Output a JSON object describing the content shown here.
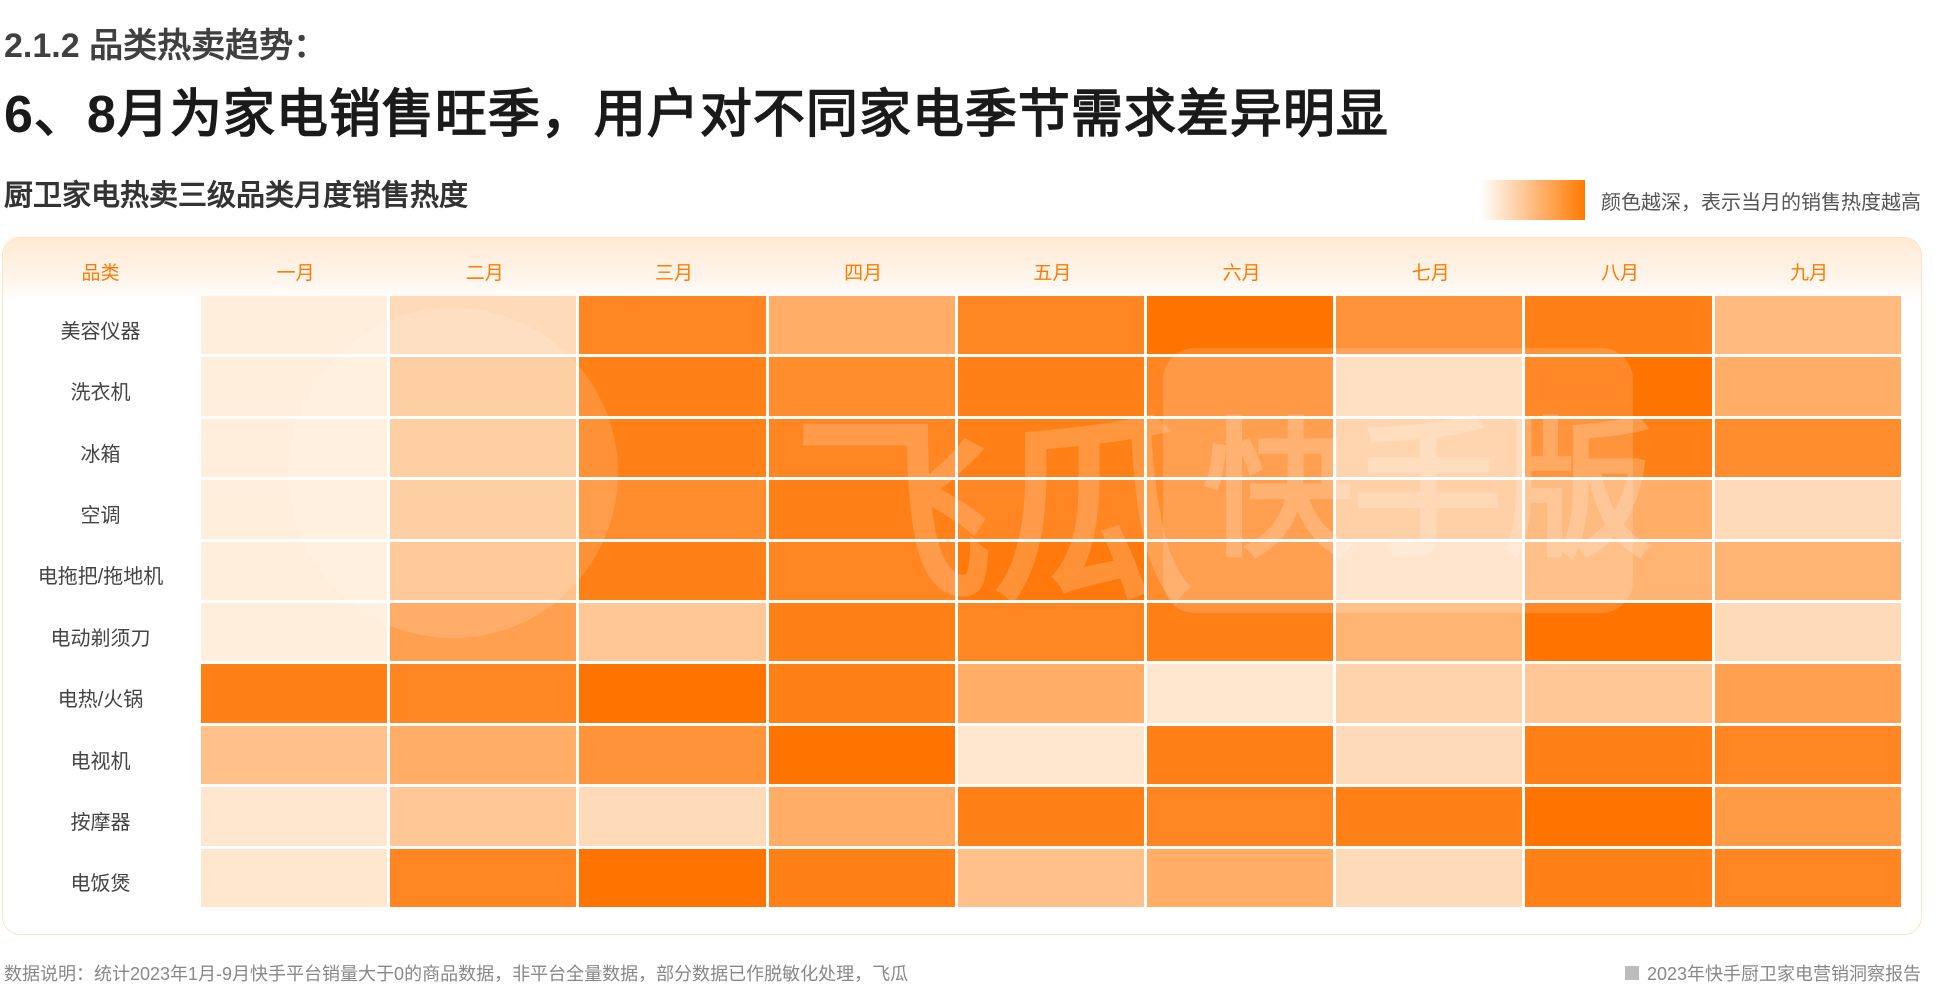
{
  "header": {
    "section": "2.1.2 品类热卖趋势：",
    "headline": "6、8月为家电销售旺季，用户对不同家电季节需求差异明显"
  },
  "chart_data": {
    "type": "heatmap",
    "title": "厨卫家电热卖三级品类月度销售热度",
    "legend_text": "颜色越深，表示当月的销售热度越高",
    "row_header": "品类",
    "columns": [
      "一月",
      "二月",
      "三月",
      "四月",
      "五月",
      "六月",
      "七月",
      "八月",
      "九月"
    ],
    "rows": [
      "美容仪器",
      "洗衣机",
      "冰箱",
      "空调",
      "电拖把/拖地机",
      "电动剃须刀",
      "电热/火锅",
      "电视机",
      "按摩器",
      "电饭煲"
    ],
    "values": [
      [
        0.05,
        0.2,
        0.85,
        0.55,
        0.85,
        1.0,
        0.75,
        0.9,
        0.45
      ],
      [
        0.05,
        0.35,
        0.9,
        0.8,
        0.9,
        0.85,
        0.2,
        1.0,
        0.55
      ],
      [
        0.05,
        0.35,
        0.9,
        0.85,
        0.9,
        0.8,
        0.3,
        0.9,
        0.8
      ],
      [
        0.05,
        0.35,
        0.8,
        0.9,
        0.85,
        0.8,
        0.35,
        0.55,
        0.2
      ],
      [
        0.05,
        0.4,
        0.9,
        0.85,
        0.95,
        0.8,
        0.15,
        0.5,
        0.5
      ],
      [
        0.05,
        0.65,
        0.35,
        0.9,
        0.85,
        0.9,
        0.5,
        1.0,
        0.2
      ],
      [
        0.9,
        0.85,
        1.0,
        0.9,
        0.55,
        0.1,
        0.25,
        0.35,
        0.65
      ],
      [
        0.4,
        0.55,
        0.75,
        1.0,
        0.1,
        0.9,
        0.2,
        0.9,
        0.85
      ],
      [
        0.1,
        0.35,
        0.2,
        0.55,
        0.9,
        0.85,
        0.9,
        1.0,
        0.7
      ],
      [
        0.1,
        0.85,
        1.0,
        0.9,
        0.4,
        0.55,
        0.2,
        0.9,
        0.85
      ]
    ],
    "scale": {
      "min_color": "#fff4e6",
      "max_color": "#ff7300"
    }
  },
  "watermark": {
    "brand": "飞瓜",
    "product": "快手版"
  },
  "footer": {
    "note": "数据说明：统计2023年1月-9月快手平台销量大于0的商品数据，非平台全量数据，部分数据已作脱敏化处理，飞瓜",
    "report": "2023年快手厨卫家电营销洞察报告"
  }
}
